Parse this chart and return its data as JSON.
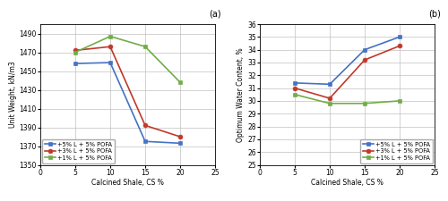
{
  "x": [
    5,
    10,
    15,
    20
  ],
  "panel_a": {
    "title": "(a)",
    "ylabel": "Unit Weight, kN/m3",
    "xlabel": "Calcined Shale, CS %",
    "xlim": [
      0,
      25
    ],
    "ylim": [
      1350,
      1500
    ],
    "yticks": [
      1350,
      1370,
      1390,
      1410,
      1430,
      1450,
      1470,
      1490
    ],
    "xticks": [
      0,
      5,
      10,
      15,
      20,
      25
    ],
    "series": [
      {
        "label": "+5% L + 5% POFA",
        "color": "#4472c4",
        "marker": "s",
        "values": [
          1458,
          1459,
          1375,
          1373
        ]
      },
      {
        "label": "+3% L + 5% POFA",
        "color": "#c0392b",
        "marker": "o",
        "values": [
          1472,
          1476,
          1392,
          1380
        ]
      },
      {
        "label": "+1% L + 5% POFA",
        "color": "#70ad47",
        "marker": "s",
        "values": [
          1470,
          1487,
          1476,
          1438
        ]
      }
    ]
  },
  "panel_b": {
    "title": "(b)",
    "ylabel": "Optimum Water Content, %",
    "xlabel": "Calcined Shale, CS %",
    "xlim": [
      0,
      25
    ],
    "ylim": [
      25,
      36
    ],
    "yticks": [
      25,
      26,
      27,
      28,
      29,
      30,
      31,
      32,
      33,
      34,
      35,
      36
    ],
    "xticks": [
      0,
      5,
      10,
      15,
      20,
      25
    ],
    "series": [
      {
        "label": "+5% L + 5% POFA",
        "color": "#4472c4",
        "marker": "s",
        "values": [
          31.4,
          31.3,
          34.0,
          35.0
        ]
      },
      {
        "label": "+3% L + 5% POFA",
        "color": "#c0392b",
        "marker": "o",
        "values": [
          31.0,
          30.2,
          33.2,
          34.3
        ]
      },
      {
        "label": "+1% L + 5% POFA",
        "color": "#70ad47",
        "marker": "s",
        "values": [
          30.5,
          29.8,
          29.8,
          30.0
        ]
      }
    ]
  },
  "fig_background": "#ffffff",
  "plot_background": "#ffffff",
  "grid_color": "#c0c0c0",
  "linewidth": 1.2,
  "markersize": 3.5,
  "title_fontsize": 7,
  "label_fontsize": 5.5,
  "tick_fontsize": 5.5,
  "legend_fontsize": 4.8
}
